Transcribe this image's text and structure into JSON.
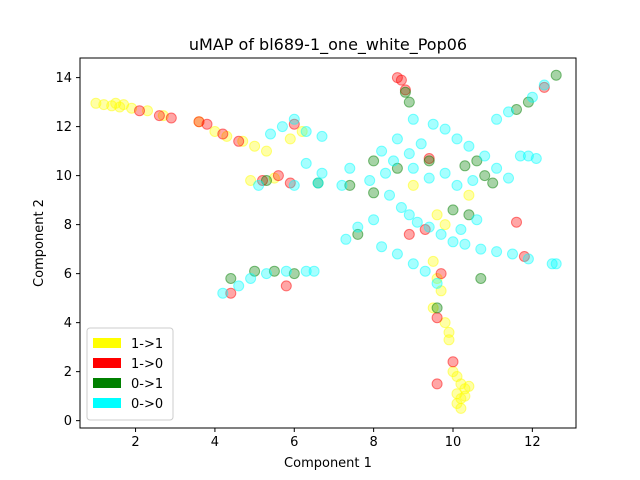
{
  "chart_data": {
    "type": "scatter",
    "title": "uMAP of bl689-1_one_white_Pop06",
    "xlabel": "Component 1",
    "ylabel": "Component 2",
    "xlim": [
      0.6,
      13.1
    ],
    "ylim": [
      -0.3,
      14.8
    ],
    "xticks": [
      2,
      4,
      6,
      8,
      10,
      12
    ],
    "yticks": [
      0,
      2,
      4,
      6,
      8,
      10,
      12,
      14
    ],
    "grid": false,
    "legend_position": "lower-left",
    "series": [
      {
        "name": "1->1",
        "color": "#ffff00",
        "points": [
          [
            1.0,
            12.95
          ],
          [
            1.2,
            12.9
          ],
          [
            1.4,
            12.85
          ],
          [
            1.5,
            12.95
          ],
          [
            1.6,
            12.8
          ],
          [
            1.7,
            12.9
          ],
          [
            1.9,
            12.75
          ],
          [
            2.3,
            12.65
          ],
          [
            2.7,
            12.45
          ],
          [
            3.6,
            12.2
          ],
          [
            4.0,
            11.8
          ],
          [
            4.3,
            11.6
          ],
          [
            4.7,
            11.4
          ],
          [
            5.0,
            11.2
          ],
          [
            5.3,
            11.0
          ],
          [
            5.9,
            11.5
          ],
          [
            6.2,
            11.8
          ],
          [
            4.9,
            9.8
          ],
          [
            5.5,
            9.9
          ],
          [
            9.0,
            9.6
          ],
          [
            9.6,
            8.4
          ],
          [
            9.8,
            8.0
          ],
          [
            10.4,
            9.2
          ],
          [
            9.5,
            6.5
          ],
          [
            9.6,
            5.8
          ],
          [
            9.7,
            5.3
          ],
          [
            9.5,
            4.6
          ],
          [
            9.8,
            4.0
          ],
          [
            9.9,
            3.6
          ],
          [
            9.9,
            3.3
          ],
          [
            10.0,
            2.0
          ],
          [
            10.1,
            1.8
          ],
          [
            10.2,
            1.5
          ],
          [
            10.3,
            1.3
          ],
          [
            10.1,
            1.1
          ],
          [
            10.2,
            0.9
          ],
          [
            10.1,
            0.7
          ],
          [
            10.2,
            0.5
          ],
          [
            10.4,
            1.4
          ],
          [
            10.3,
            1.0
          ]
        ]
      },
      {
        "name": "1->0",
        "color": "#ff0000",
        "points": [
          [
            2.1,
            12.65
          ],
          [
            2.6,
            12.45
          ],
          [
            2.9,
            12.35
          ],
          [
            3.6,
            12.2
          ],
          [
            3.8,
            12.1
          ],
          [
            4.2,
            11.7
          ],
          [
            4.6,
            11.4
          ],
          [
            5.2,
            9.8
          ],
          [
            5.6,
            10.0
          ],
          [
            5.9,
            9.7
          ],
          [
            6.0,
            12.1
          ],
          [
            8.6,
            14.0
          ],
          [
            8.7,
            13.9
          ],
          [
            8.8,
            13.5
          ],
          [
            9.4,
            10.7
          ],
          [
            8.9,
            7.6
          ],
          [
            9.3,
            7.8
          ],
          [
            9.7,
            6.0
          ],
          [
            9.6,
            4.2
          ],
          [
            10.0,
            2.4
          ],
          [
            9.6,
            1.5
          ],
          [
            11.6,
            8.1
          ],
          [
            11.8,
            6.7
          ],
          [
            12.3,
            13.6
          ],
          [
            4.4,
            5.2
          ],
          [
            5.8,
            5.5
          ]
        ]
      },
      {
        "name": "0->1",
        "color": "#008000",
        "points": [
          [
            8.8,
            13.4
          ],
          [
            8.9,
            13.0
          ],
          [
            11.6,
            12.7
          ],
          [
            11.9,
            13.0
          ],
          [
            12.6,
            14.1
          ],
          [
            8.0,
            10.6
          ],
          [
            8.6,
            10.3
          ],
          [
            9.4,
            10.6
          ],
          [
            10.3,
            10.4
          ],
          [
            10.6,
            10.6
          ],
          [
            10.8,
            10.0
          ],
          [
            11.0,
            9.7
          ],
          [
            7.6,
            7.6
          ],
          [
            10.0,
            8.6
          ],
          [
            10.4,
            8.4
          ],
          [
            10.7,
            5.8
          ],
          [
            9.6,
            4.6
          ],
          [
            4.4,
            5.8
          ],
          [
            5.0,
            6.1
          ],
          [
            5.5,
            6.1
          ],
          [
            6.0,
            6.0
          ],
          [
            5.3,
            9.8
          ],
          [
            6.6,
            9.7
          ],
          [
            7.4,
            9.6
          ],
          [
            8.0,
            9.3
          ]
        ]
      },
      {
        "name": "0->0",
        "color": "#00ffff",
        "points": [
          [
            4.2,
            5.2
          ],
          [
            4.6,
            5.5
          ],
          [
            4.9,
            5.8
          ],
          [
            5.3,
            6.0
          ],
          [
            5.8,
            6.1
          ],
          [
            6.3,
            6.1
          ],
          [
            6.5,
            6.1
          ],
          [
            5.1,
            9.6
          ],
          [
            6.0,
            9.6
          ],
          [
            6.6,
            9.7
          ],
          [
            7.2,
            9.6
          ],
          [
            7.9,
            9.8
          ],
          [
            8.3,
            10.1
          ],
          [
            8.5,
            10.6
          ],
          [
            8.9,
            10.9
          ],
          [
            9.2,
            11.3
          ],
          [
            9.5,
            12.1
          ],
          [
            9.8,
            11.9
          ],
          [
            10.1,
            11.5
          ],
          [
            10.4,
            11.2
          ],
          [
            10.8,
            10.8
          ],
          [
            11.1,
            10.3
          ],
          [
            11.4,
            9.9
          ],
          [
            11.7,
            10.8
          ],
          [
            11.9,
            10.8
          ],
          [
            12.1,
            10.7
          ],
          [
            9.0,
            10.3
          ],
          [
            9.4,
            9.9
          ],
          [
            9.8,
            10.1
          ],
          [
            10.1,
            9.6
          ],
          [
            10.5,
            9.8
          ],
          [
            8.4,
            9.2
          ],
          [
            8.7,
            8.7
          ],
          [
            8.9,
            8.4
          ],
          [
            9.1,
            8.1
          ],
          [
            9.4,
            7.9
          ],
          [
            9.7,
            7.6
          ],
          [
            10.0,
            7.3
          ],
          [
            10.3,
            7.2
          ],
          [
            10.7,
            7.0
          ],
          [
            11.1,
            6.9
          ],
          [
            11.5,
            6.8
          ],
          [
            11.9,
            6.6
          ],
          [
            12.5,
            6.4
          ],
          [
            12.6,
            6.4
          ],
          [
            8.0,
            8.2
          ],
          [
            7.6,
            7.9
          ],
          [
            7.3,
            7.4
          ],
          [
            8.2,
            7.1
          ],
          [
            8.6,
            6.8
          ],
          [
            9.0,
            6.4
          ],
          [
            9.3,
            6.1
          ],
          [
            9.6,
            5.6
          ],
          [
            10.2,
            7.8
          ],
          [
            10.6,
            8.2
          ],
          [
            11.1,
            12.3
          ],
          [
            11.4,
            12.6
          ],
          [
            12.0,
            13.2
          ],
          [
            12.3,
            13.7
          ],
          [
            5.4,
            11.7
          ],
          [
            5.7,
            12.0
          ],
          [
            6.0,
            12.3
          ],
          [
            6.3,
            11.8
          ],
          [
            6.7,
            11.6
          ],
          [
            6.3,
            10.5
          ],
          [
            6.7,
            10.1
          ],
          [
            7.4,
            10.3
          ],
          [
            9.0,
            12.3
          ],
          [
            8.6,
            11.5
          ],
          [
            8.2,
            11.0
          ]
        ]
      }
    ]
  }
}
